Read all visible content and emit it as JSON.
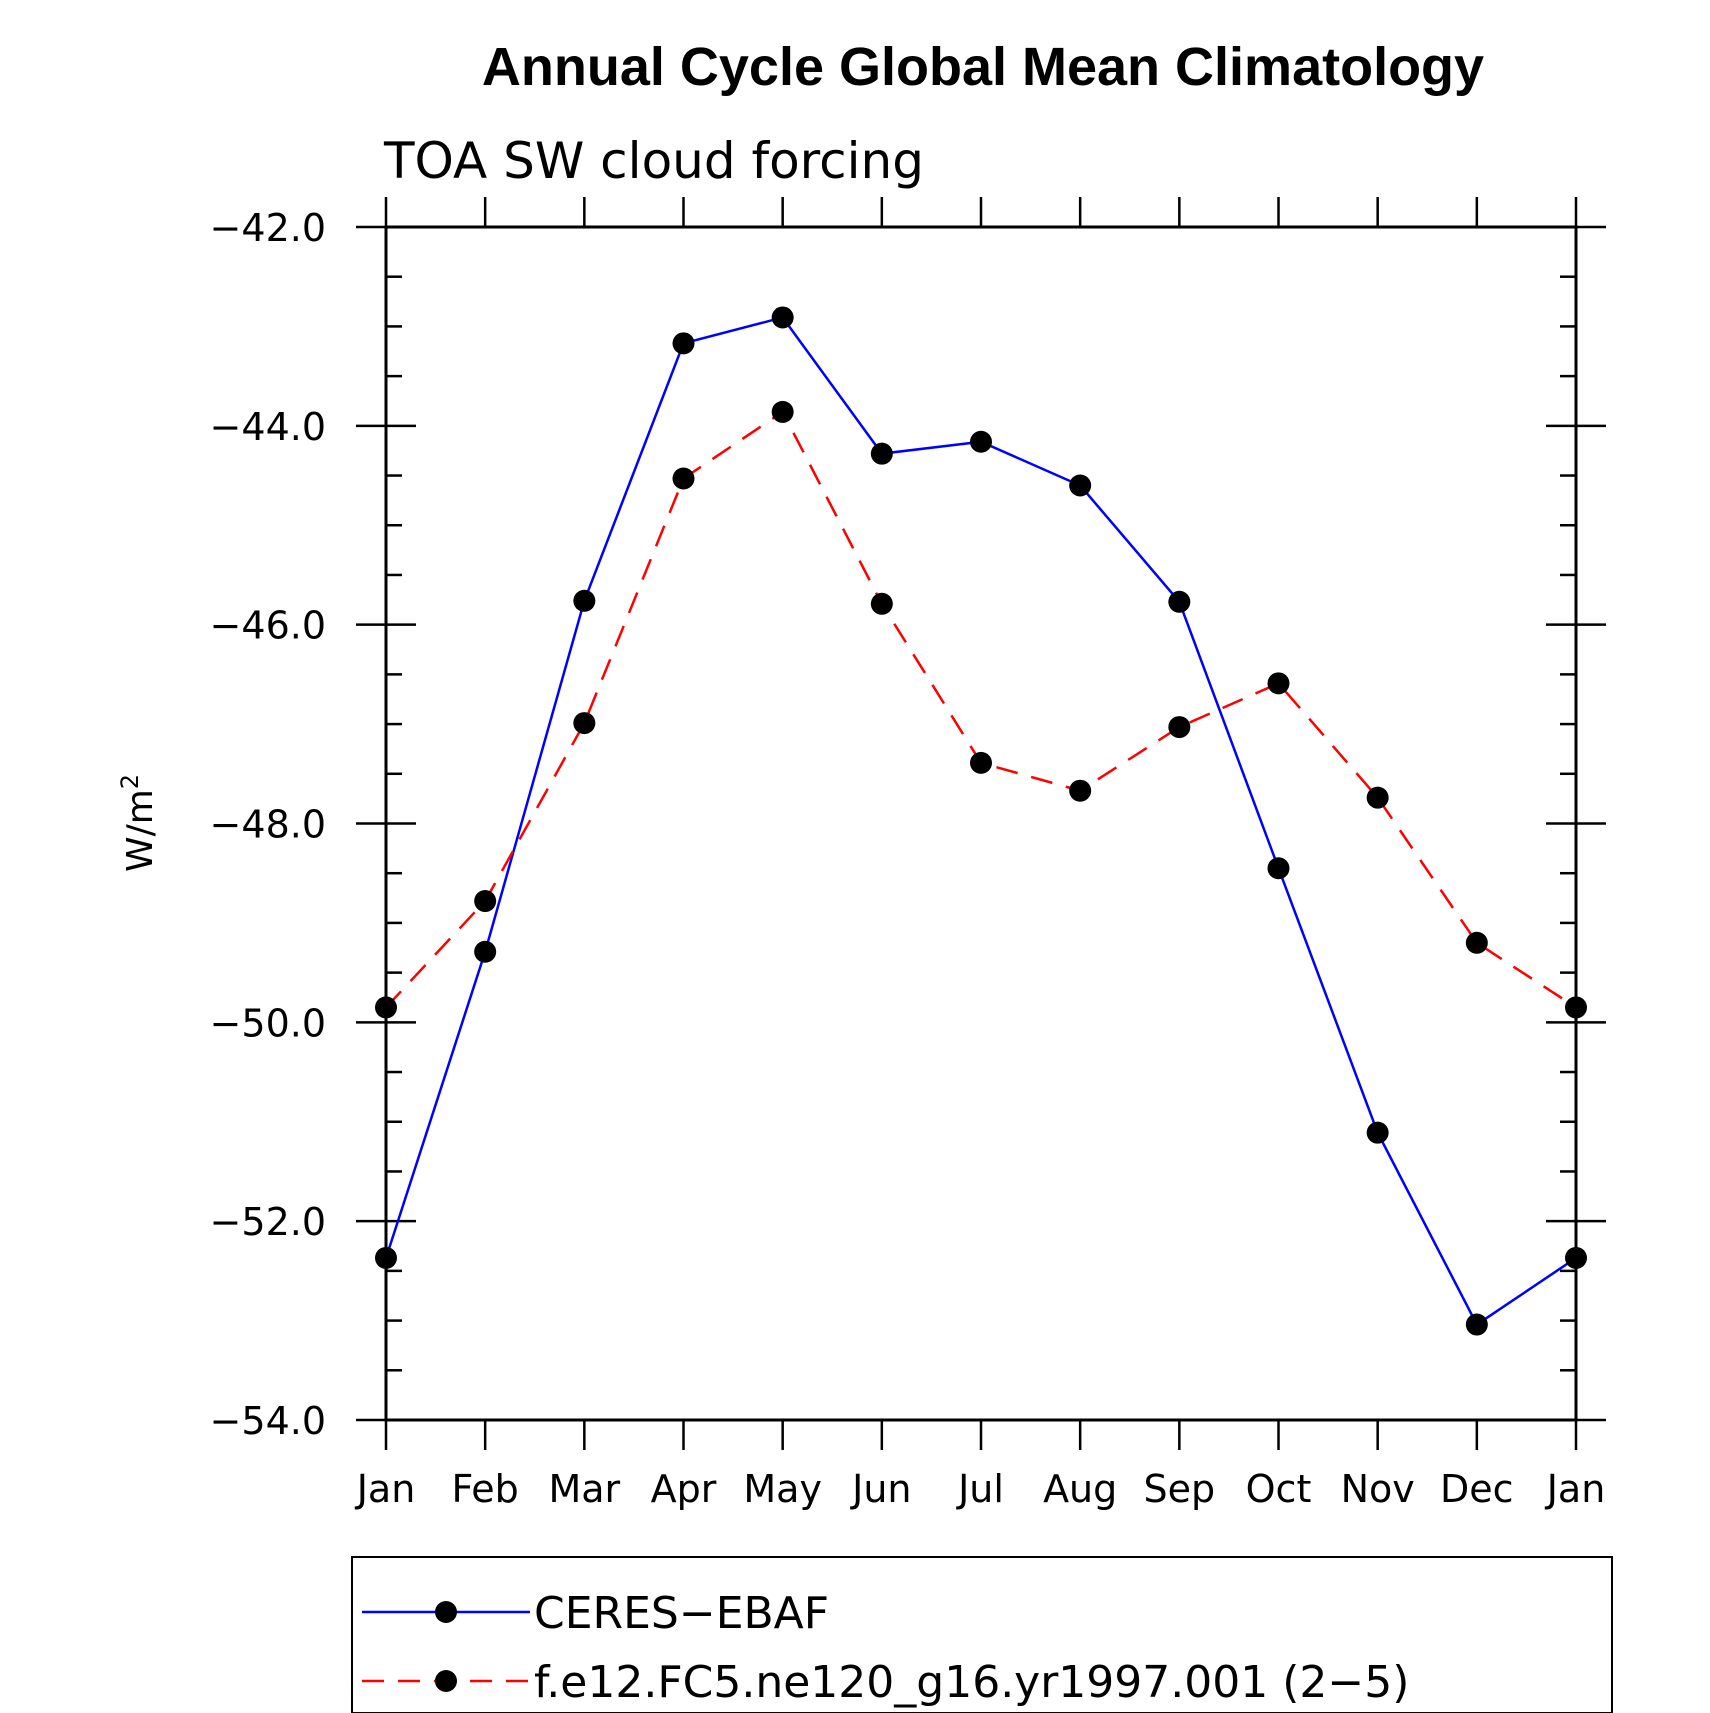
{
  "chart_data": {
    "type": "line",
    "title": "Annual Cycle Global Mean Climatology",
    "subtitle": "TOA SW cloud forcing",
    "ylabel": "W/m",
    "ylabel_superscript": "2",
    "xlabel": "",
    "categories": [
      "Jan",
      "Feb",
      "Mar",
      "Apr",
      "May",
      "Jun",
      "Jul",
      "Aug",
      "Sep",
      "Oct",
      "Nov",
      "Dec",
      "Jan"
    ],
    "ylim": [
      -54.0,
      -42.0
    ],
    "y_ticks": [
      -54.0,
      -52.0,
      -50.0,
      -48.0,
      -46.0,
      -44.0,
      -42.0
    ],
    "y_tick_labels": [
      "−54.0",
      "−52.0",
      "−50.0",
      "−48.0",
      "−46.0",
      "−44.0",
      "−42.0"
    ],
    "y_minor_step": 0.5,
    "grid": false,
    "legend_position": "bottom",
    "series": [
      {
        "name": "CERES−EBAF",
        "color": "#0000ff",
        "dash": "solid",
        "marker": "filled-circle",
        "values": [
          -52.37,
          -49.29,
          -45.76,
          -43.17,
          -42.91,
          -44.28,
          -44.16,
          -44.6,
          -45.77,
          -48.45,
          -51.11,
          -53.04,
          -52.37
        ]
      },
      {
        "name": "f.e12.FC5.ne120_g16.yr1997.001 (2−5)",
        "color": "#ff0000",
        "dash": "dashed",
        "marker": "filled-circle",
        "values": [
          -49.85,
          -48.78,
          -46.99,
          -44.53,
          -43.86,
          -45.79,
          -47.39,
          -47.67,
          -47.03,
          -46.59,
          -47.74,
          -49.2,
          -49.85
        ]
      }
    ]
  }
}
